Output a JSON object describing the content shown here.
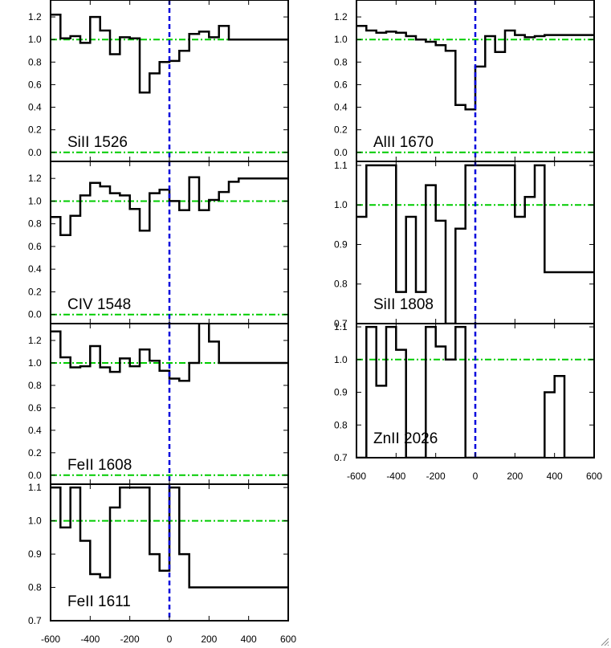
{
  "chart_data": [
    {
      "type": "line",
      "label": "SiII 1526",
      "x": [
        -600,
        -550,
        -500,
        -450,
        -400,
        -350,
        -300,
        -250,
        -200,
        -150,
        -100,
        -50,
        0,
        50,
        100,
        150,
        200,
        250,
        300,
        350,
        400,
        450,
        500,
        550
      ],
      "y": [
        1.22,
        1.01,
        1.03,
        0.97,
        1.2,
        1.08,
        0.87,
        1.02,
        1.01,
        0.53,
        0.7,
        0.8,
        0.81,
        0.9,
        1.05,
        1.07,
        1.02,
        1.12,
        1.0,
        1.0,
        1.0,
        1.0,
        1.0,
        1.0
      ],
      "xlim": [
        -600,
        600
      ],
      "ylim": [
        -0.08,
        1.35
      ],
      "yticks": [
        "0.0",
        "0.2",
        "0.4",
        "0.6",
        "0.8",
        "1.0",
        "1.2"
      ],
      "continuum": 1.0,
      "zero_level": 0.0
    },
    {
      "type": "line",
      "label": "AlII 1670",
      "x": [
        -600,
        -550,
        -500,
        -450,
        -400,
        -350,
        -300,
        -250,
        -200,
        -150,
        -100,
        -50,
        0,
        50,
        100,
        150,
        200,
        250,
        300,
        350,
        400,
        450,
        500,
        550
      ],
      "y": [
        1.12,
        1.08,
        1.06,
        1.07,
        1.06,
        1.03,
        1.0,
        0.98,
        0.95,
        0.9,
        0.42,
        0.38,
        0.76,
        1.03,
        0.89,
        1.08,
        1.04,
        1.02,
        1.03,
        1.04,
        1.04,
        1.04,
        1.04,
        1.04
      ],
      "xlim": [
        -600,
        600
      ],
      "ylim": [
        -0.08,
        1.35
      ],
      "yticks": [
        "0.0",
        "0.2",
        "0.4",
        "0.6",
        "0.8",
        "1.0",
        "1.2"
      ],
      "continuum": 1.0,
      "zero_level": 0.0
    },
    {
      "type": "line",
      "label": "CIV 1548",
      "x": [
        -600,
        -550,
        -500,
        -450,
        -400,
        -350,
        -300,
        -250,
        -200,
        -150,
        -100,
        -50,
        0,
        50,
        100,
        150,
        200,
        250,
        300,
        350,
        400,
        450,
        500,
        550
      ],
      "y": [
        0.86,
        0.7,
        0.87,
        1.05,
        1.16,
        1.13,
        1.07,
        1.05,
        0.93,
        0.74,
        1.07,
        1.1,
        1.0,
        0.92,
        1.21,
        0.92,
        1.01,
        1.08,
        1.17,
        1.2,
        1.2,
        1.2,
        1.2,
        1.2
      ],
      "xlim": [
        -600,
        600
      ],
      "ylim": [
        -0.08,
        1.35
      ],
      "yticks": [
        "0.0",
        "0.2",
        "0.4",
        "0.6",
        "0.8",
        "1.0",
        "1.2"
      ],
      "continuum": 1.0,
      "zero_level": 0.0
    },
    {
      "type": "line",
      "label": "SiII 1808",
      "x": [
        -600,
        -550,
        -500,
        -450,
        -400,
        -350,
        -300,
        -250,
        -200,
        -150,
        -100,
        -50,
        0,
        50,
        100,
        150,
        200,
        250,
        300,
        350,
        400,
        450,
        500,
        550
      ],
      "y": [
        0.97,
        1.1,
        1.1,
        1.1,
        0.78,
        0.97,
        0.78,
        1.05,
        0.96,
        0.7,
        0.94,
        1.1,
        1.1,
        1.1,
        1.1,
        1.1,
        0.97,
        1.02,
        1.1,
        0.83,
        0.83,
        0.83,
        0.83,
        0.83
      ],
      "xlim": [
        -600,
        600
      ],
      "ylim": [
        0.7,
        1.11
      ],
      "yticks": [
        "0.7",
        "0.8",
        "0.9",
        "1.0",
        "1.1"
      ],
      "continuum": 1.0
    },
    {
      "type": "line",
      "label": "FeII 1608",
      "x": [
        -600,
        -550,
        -500,
        -450,
        -400,
        -350,
        -300,
        -250,
        -200,
        -150,
        -100,
        -50,
        0,
        50,
        100,
        150,
        200,
        250,
        300,
        350,
        400,
        450,
        500,
        550
      ],
      "y": [
        1.28,
        1.05,
        0.96,
        0.97,
        1.15,
        0.96,
        0.92,
        1.04,
        0.97,
        1.12,
        1.02,
        0.93,
        0.86,
        0.84,
        1.0,
        1.39,
        1.19,
        1.0,
        1.0,
        1.0,
        1.0,
        1.0,
        1.0,
        1.0
      ],
      "xlim": [
        -600,
        600
      ],
      "ylim": [
        -0.08,
        1.35
      ],
      "yticks": [
        "0.0",
        "0.2",
        "0.4",
        "0.6",
        "0.8",
        "1.0",
        "1.2"
      ],
      "continuum": 1.0,
      "zero_level": 0.0
    },
    {
      "type": "line",
      "label": "ZnII 2026",
      "x": [
        -600,
        -550,
        -500,
        -450,
        -400,
        -350,
        -300,
        -250,
        -200,
        -150,
        -100,
        -50,
        0,
        50,
        100,
        150,
        200,
        250,
        300,
        350,
        400,
        450,
        500,
        550
      ],
      "y": [
        0.7,
        1.1,
        0.92,
        1.1,
        1.03,
        0.7,
        0.7,
        1.1,
        1.04,
        1.0,
        1.1,
        0.7,
        0.7,
        0.7,
        0.7,
        0.7,
        0.7,
        0.7,
        0.7,
        0.9,
        0.95,
        0.7,
        0.7,
        0.7
      ],
      "xlim": [
        -600,
        600
      ],
      "ylim": [
        0.7,
        1.11
      ],
      "yticks": [
        "0.7",
        "0.8",
        "0.9",
        "1.0",
        "1.1"
      ],
      "xticks": [
        "-600",
        "-400",
        "-200",
        "0",
        "200",
        "400",
        "600"
      ],
      "continuum": 1.0
    },
    {
      "type": "line",
      "label": "FeII 1611",
      "x": [
        -600,
        -550,
        -500,
        -450,
        -400,
        -350,
        -300,
        -250,
        -200,
        -150,
        -100,
        -50,
        0,
        50,
        100,
        150,
        200,
        250,
        300,
        350,
        400,
        450,
        500,
        550
      ],
      "y": [
        1.1,
        0.98,
        1.1,
        0.94,
        0.84,
        0.83,
        1.04,
        1.1,
        1.1,
        1.1,
        0.9,
        0.85,
        1.1,
        0.9,
        0.8,
        0.8,
        0.8,
        0.8,
        0.8,
        0.8,
        0.8,
        0.8,
        0.8,
        0.8
      ],
      "xlim": [
        -600,
        600
      ],
      "ylim": [
        0.7,
        1.11
      ],
      "yticks": [
        "0.7",
        "0.8",
        "0.9",
        "1.0",
        "1.1"
      ],
      "xticks": [
        "-600",
        "-400",
        "-200",
        "0",
        "200",
        "400",
        "600"
      ],
      "continuum": 1.0
    }
  ],
  "style": {
    "spectrum_color": "#000000",
    "continuum_color": "#00cc00",
    "zero_velocity_color": "#0000dd",
    "axis_color": "#000000"
  }
}
